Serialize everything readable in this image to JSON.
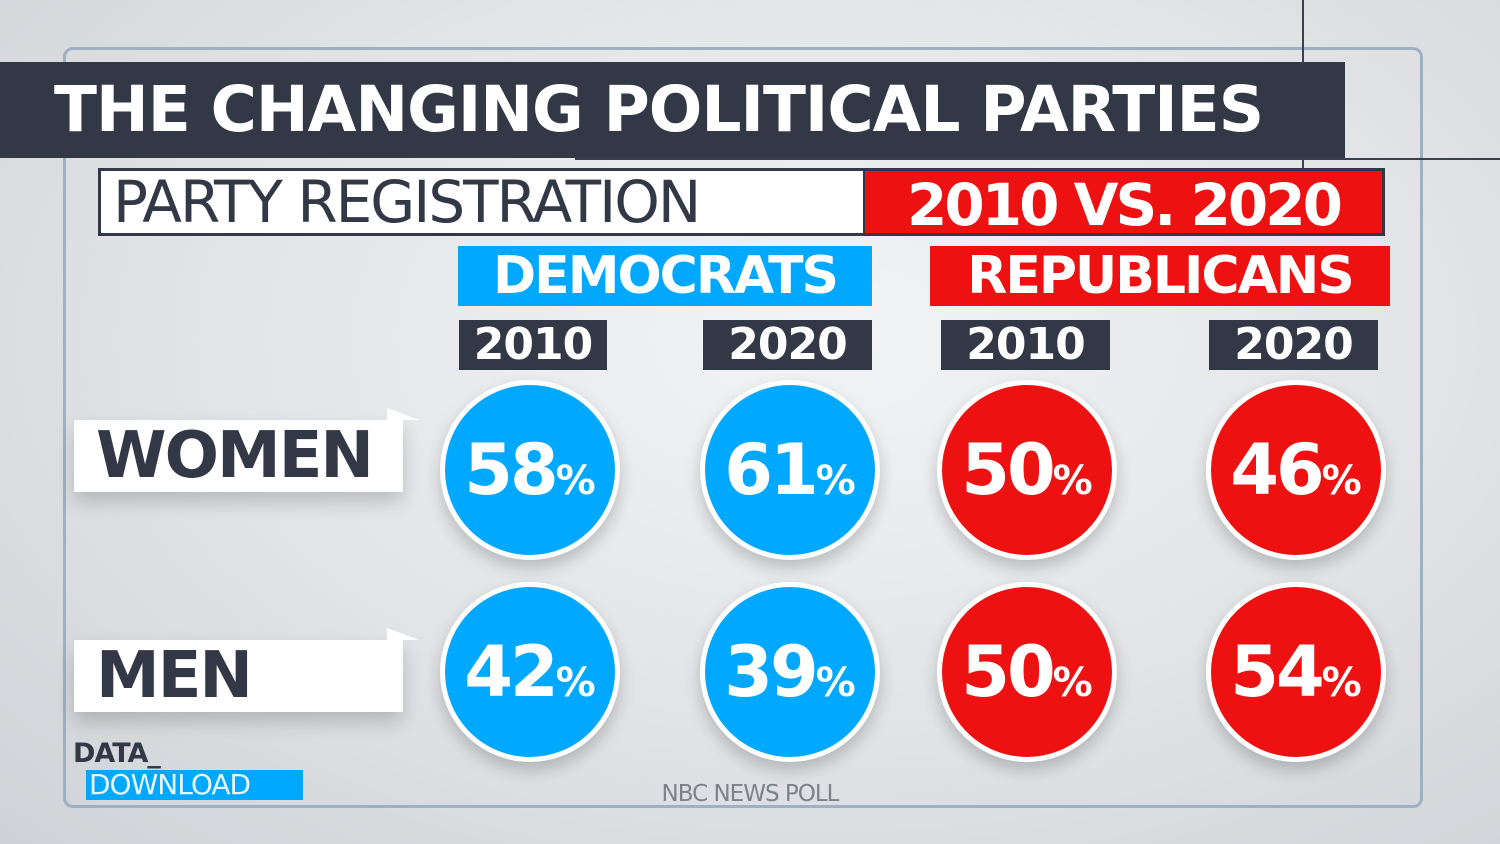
{
  "title": "THE CHANGING POLITICAL PARTIES",
  "subtitle": {
    "left": "PARTY REGISTRATION",
    "right": "2010 VS. 2020"
  },
  "colors": {
    "democrats": "#00a8ff",
    "republicans": "#ee1111",
    "dark": "#323845"
  },
  "chart_data": {
    "type": "table",
    "groups": [
      {
        "name": "DEMOCRATS",
        "years": [
          "2010",
          "2020"
        ]
      },
      {
        "name": "REPUBLICANS",
        "years": [
          "2010",
          "2020"
        ]
      }
    ],
    "rows": [
      "WOMEN",
      "MEN"
    ],
    "unit": "%",
    "values": {
      "WOMEN": [
        58,
        61,
        50,
        46
      ],
      "MEN": [
        42,
        39,
        50,
        54
      ]
    }
  },
  "branding": {
    "data": "DATA_",
    "download": "DOWNLOAD"
  },
  "source": "NBC NEWS POLL"
}
